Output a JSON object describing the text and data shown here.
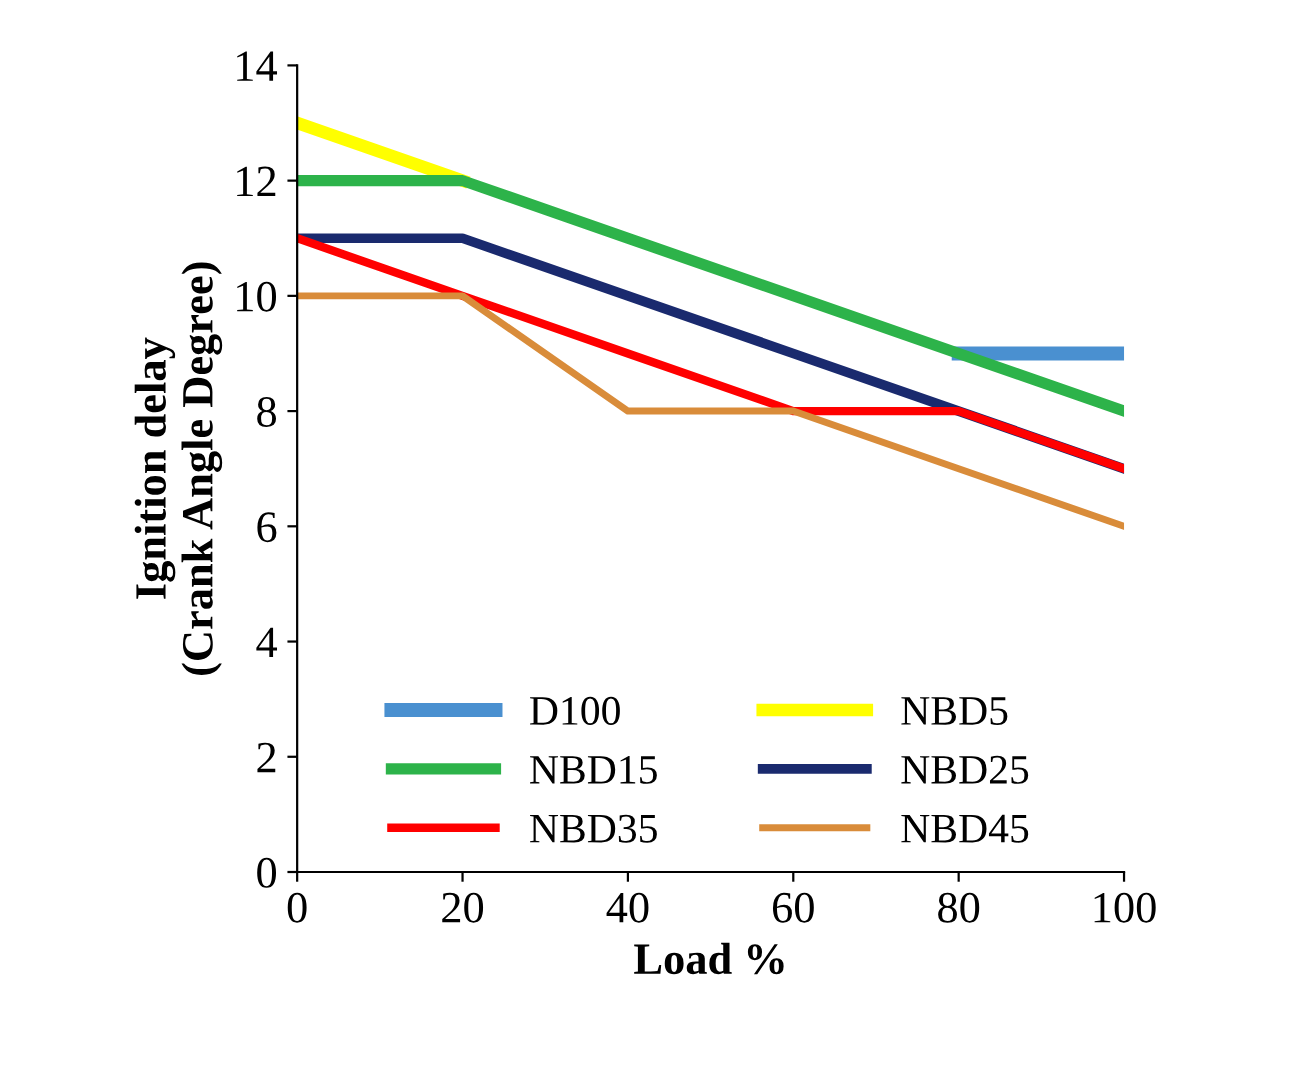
{
  "chart_data": {
    "type": "line",
    "xlabel": "Load %",
    "ylabel": "Ignition delay\n(Crank Angle Degree)",
    "x": [
      0,
      20,
      40,
      60,
      80,
      100
    ],
    "series": [
      {
        "name": "D100",
        "color": "#4a90d0",
        "values": [
          null,
          null,
          null,
          null,
          9,
          9
        ]
      },
      {
        "name": "NBD5",
        "color": "#ffff00",
        "values": [
          13,
          12,
          null,
          null,
          null,
          null
        ]
      },
      {
        "name": "NBD15",
        "color": "#2db34a",
        "values": [
          12,
          12,
          11,
          10,
          9,
          8
        ]
      },
      {
        "name": "NBD25",
        "color": "#1a2a6e",
        "values": [
          11,
          11,
          10,
          9,
          8,
          7
        ]
      },
      {
        "name": "NBD35",
        "color": "#ff0000",
        "values": [
          11,
          10,
          9,
          8,
          8,
          7
        ]
      },
      {
        "name": "NBD45",
        "color": "#d98c3a",
        "values": [
          10,
          10,
          8,
          8,
          7,
          6
        ]
      }
    ],
    "xlim": [
      0,
      100
    ],
    "xticks": [
      0,
      20,
      40,
      60,
      80,
      100
    ],
    "ylim": [
      0,
      14
    ],
    "yticks": [
      0,
      2,
      4,
      6,
      8,
      10,
      12,
      14
    ],
    "grid": false,
    "legend": "bottom",
    "marker": "none",
    "line_style": "solid"
  }
}
